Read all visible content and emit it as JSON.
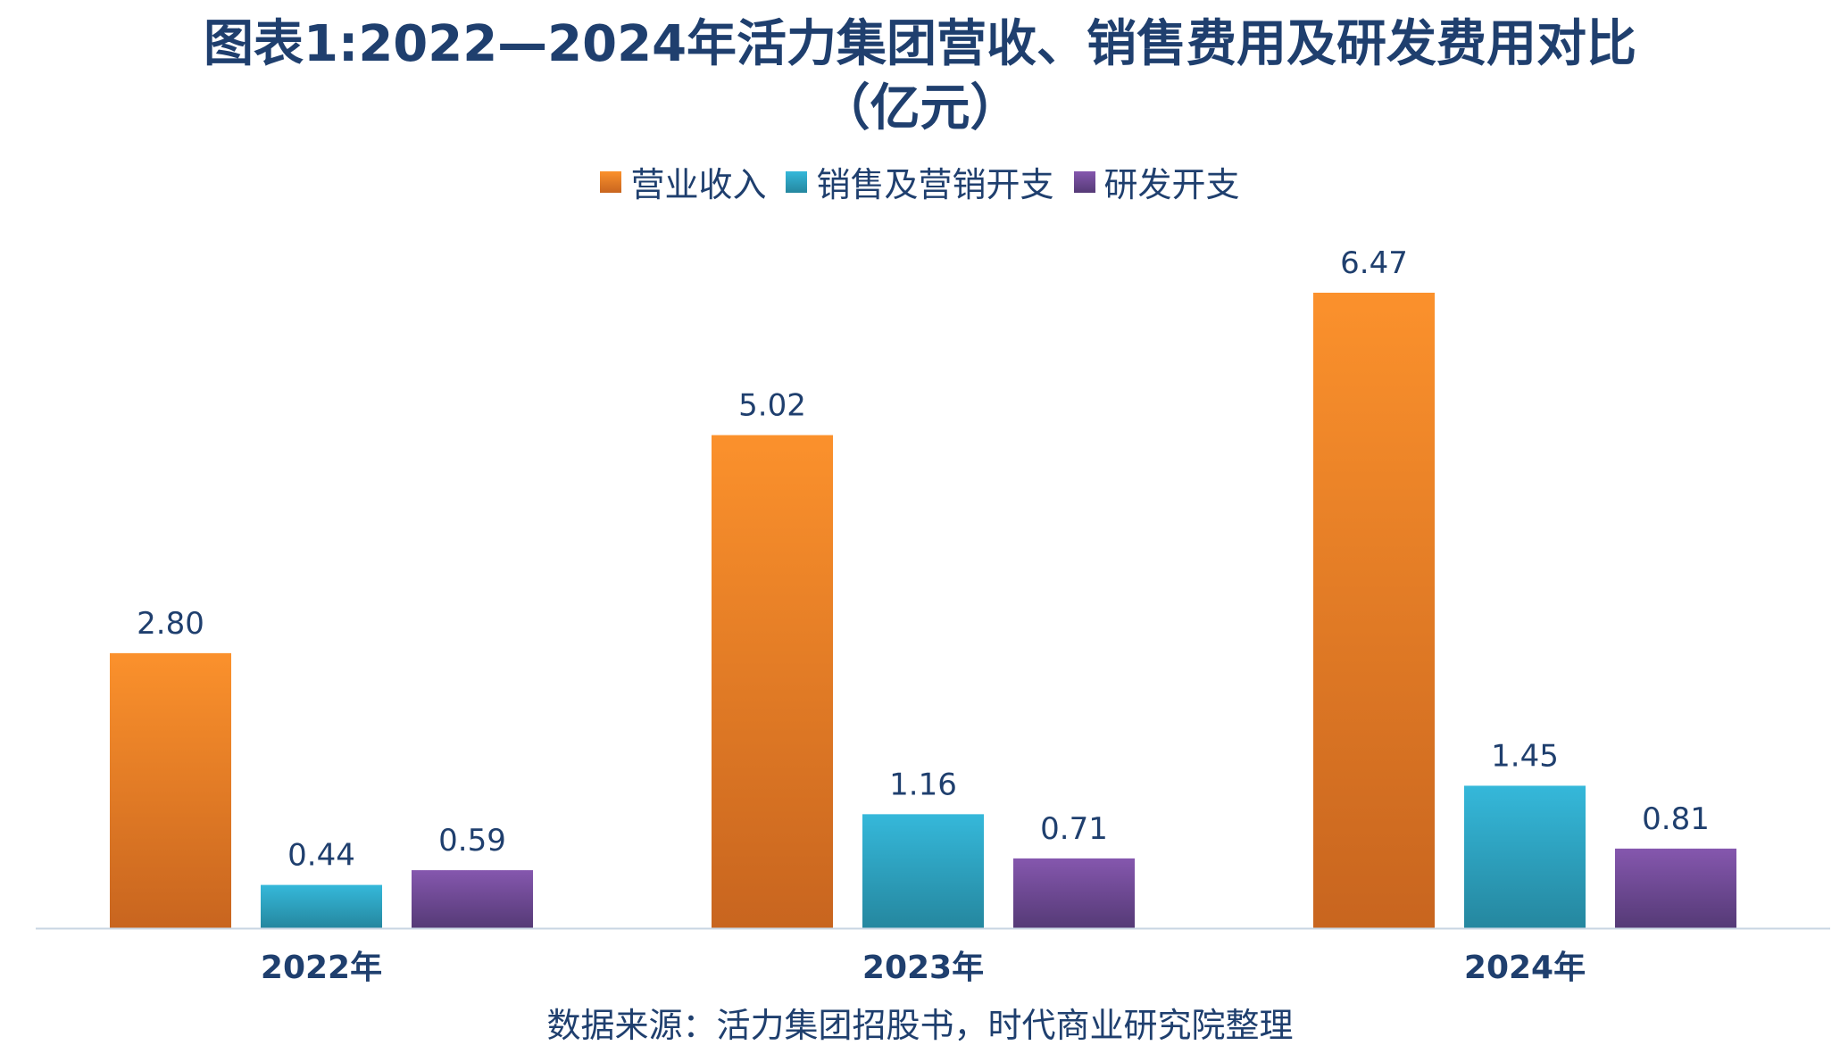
{
  "chart_data": {
    "type": "bar",
    "title_line1": "图表1:2022—2024年活力集团营收、销售费用及研发费用对比",
    "title_line2": "（亿元）",
    "categories": [
      "2022年",
      "2023年",
      "2024年"
    ],
    "series": [
      {
        "name": "营业收入",
        "values": [
          2.8,
          5.02,
          6.47
        ],
        "labels": [
          "2.80",
          "5.02",
          "6.47"
        ],
        "color_top": "#fb912c",
        "color_bottom": "#c8651f"
      },
      {
        "name": "销售及营销开支",
        "values": [
          0.44,
          1.16,
          1.45
        ],
        "labels": [
          "0.44",
          "1.16",
          "1.45"
        ],
        "color_top": "#35b8da",
        "color_bottom": "#25879f"
      },
      {
        "name": "研发开支",
        "values": [
          0.59,
          0.71,
          0.81
        ],
        "labels": [
          "0.59",
          "0.71",
          "0.81"
        ],
        "color_top": "#8557ae",
        "color_bottom": "#553a76"
      }
    ],
    "ylim": [
      0,
      7.5
    ],
    "legend_position": "top",
    "grid": false,
    "source": "数据来源：活力集团招股书，时代商业研究院整理"
  },
  "colors": {
    "title": "#1f3f6e",
    "axis": "#c9d6e3"
  }
}
